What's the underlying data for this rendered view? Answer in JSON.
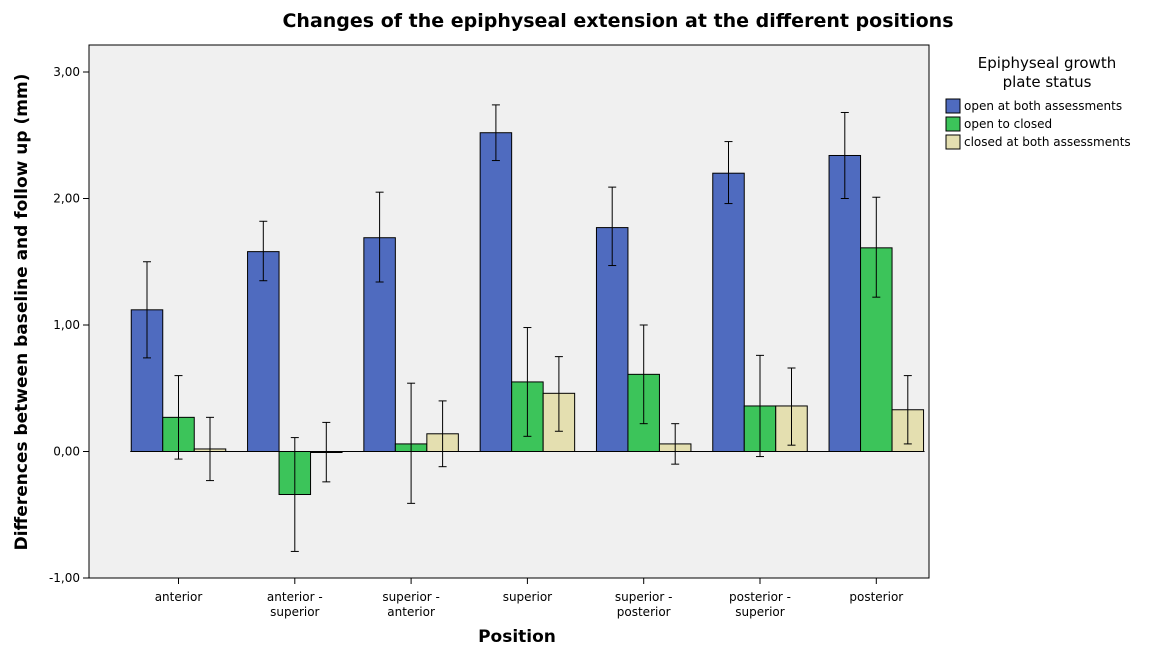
{
  "chart_data": {
    "type": "bar",
    "title": "Changes of the epiphyseal extension at the different positions",
    "xlabel": "Position",
    "ylabel": "Differences between baseline and follow up (mm)",
    "ylim": [
      -1.0,
      3.0
    ],
    "yticks": [
      "-1,00",
      "0,00",
      "1,00",
      "2,00",
      "3,00"
    ],
    "ytick_values": [
      -1,
      0,
      1,
      2,
      3
    ],
    "grid": false,
    "legend_placement": "right",
    "legend_title": [
      "Epiphyseal growth",
      "plate status"
    ],
    "categories": [
      [
        "anterior"
      ],
      [
        "anterior -",
        "superior"
      ],
      [
        "superior -",
        "anterior"
      ],
      [
        "superior"
      ],
      [
        "superior -",
        "posterior"
      ],
      [
        "posterior -",
        "superior"
      ],
      [
        "posterior"
      ]
    ],
    "series": [
      {
        "name": "open at both assessments",
        "color": "#4f6bbf",
        "values": [
          1.12,
          1.58,
          1.69,
          2.52,
          1.77,
          2.2,
          2.34
        ],
        "error_low": [
          0.74,
          1.35,
          1.34,
          2.3,
          1.47,
          1.96,
          2.0
        ],
        "error_high": [
          1.5,
          1.82,
          2.05,
          2.74,
          2.09,
          2.45,
          2.68
        ]
      },
      {
        "name": "open to closed",
        "color": "#3cc45a",
        "values": [
          0.27,
          -0.34,
          0.06,
          0.55,
          0.61,
          0.36,
          1.61
        ],
        "error_low": [
          -0.06,
          -0.79,
          -0.41,
          0.12,
          0.22,
          -0.04,
          1.22
        ],
        "error_high": [
          0.6,
          0.11,
          0.54,
          0.98,
          1.0,
          0.76,
          2.01
        ]
      },
      {
        "name": "closed at both assessments",
        "color": "#e4dfb0",
        "values": [
          0.02,
          0.0,
          0.14,
          0.46,
          0.06,
          0.36,
          0.33
        ],
        "error_low": [
          -0.23,
          -0.24,
          -0.12,
          0.16,
          -0.1,
          0.05,
          0.06
        ],
        "error_high": [
          0.27,
          0.23,
          0.4,
          0.75,
          0.22,
          0.66,
          0.6
        ]
      }
    ],
    "colors": {
      "plot_background": "#f0f0f0",
      "frame": "#000000"
    }
  }
}
